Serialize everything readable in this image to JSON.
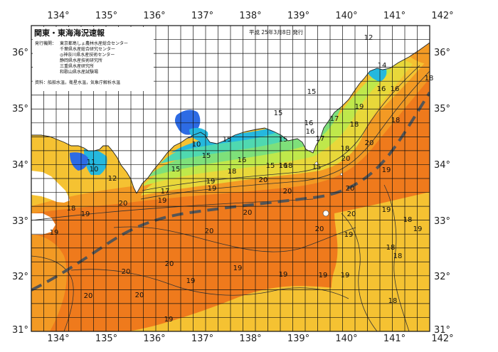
{
  "header": {
    "title": "関東・東海海況速報",
    "date": "平成 25年3月8日 発行"
  },
  "issuers": {
    "label": "発行機関：",
    "names": [
      "東京都島しょ農林水産総合センター",
      "千葉県水産総合研究センター",
      "◎神奈川県水産技術センター",
      "静岡県水産技術研究所",
      "三重県水産研究所",
      "和歌山県水産試験場"
    ]
  },
  "sources": "資料：船舶水温，衛星水温，気象庁解析水温",
  "axes": {
    "lon_labels": [
      "134°",
      "135°",
      "136°",
      "137°",
      "138°",
      "139°",
      "140°",
      "141°",
      "142°"
    ],
    "lat_labels": [
      "36°",
      "35°",
      "34°",
      "33°",
      "32°",
      "31°"
    ]
  },
  "legend_colors": {
    "t10": "#2d6be4",
    "t12": "#25b8de",
    "t14": "#4fd8b0",
    "t15": "#7ee07a",
    "t16": "#bfe84b",
    "t17": "#e8d83a",
    "t18": "#f5c232",
    "t19": "#f39a24",
    "t20": "#ef7a1c",
    "kuroshio_axis": "#555555"
  },
  "isotherm_labels": [
    {
      "text": "12"
    },
    {
      "text": "14"
    },
    {
      "text": "16"
    },
    {
      "text": "15"
    },
    {
      "text": "16"
    },
    {
      "text": "15"
    },
    {
      "text": "16"
    },
    {
      "text": "17"
    },
    {
      "text": "18"
    },
    {
      "text": "16"
    },
    {
      "text": "17"
    },
    {
      "text": "15"
    },
    {
      "text": "15"
    },
    {
      "text": "19"
    },
    {
      "text": "15"
    },
    {
      "text": "16"
    },
    {
      "text": "20"
    },
    {
      "text": "18"
    },
    {
      "text": "20"
    },
    {
      "text": "10"
    },
    {
      "text": "15"
    },
    {
      "text": "11"
    },
    {
      "text": "10"
    },
    {
      "text": "12"
    },
    {
      "text": "15"
    },
    {
      "text": "16"
    },
    {
      "text": "18"
    },
    {
      "text": "15"
    },
    {
      "text": "19"
    },
    {
      "text": "20"
    },
    {
      "text": "18"
    },
    {
      "text": "20"
    },
    {
      "text": "17"
    },
    {
      "text": "19"
    },
    {
      "text": "19"
    },
    {
      "text": "20"
    },
    {
      "text": "20"
    },
    {
      "text": "18"
    },
    {
      "text": "19"
    },
    {
      "text": "20"
    },
    {
      "text": "20"
    },
    {
      "text": "20"
    },
    {
      "text": "19"
    },
    {
      "text": "19"
    },
    {
      "text": "20"
    },
    {
      "text": "19"
    },
    {
      "text": "20"
    },
    {
      "text": "18"
    },
    {
      "text": "18"
    },
    {
      "text": "19"
    },
    {
      "text": "19"
    },
    {
      "text": "19"
    },
    {
      "text": "20"
    },
    {
      "text": "20"
    },
    {
      "text": "20"
    },
    {
      "text": "19"
    },
    {
      "text": "19"
    },
    {
      "text": "19"
    },
    {
      "text": "19"
    },
    {
      "text": "18"
    },
    {
      "text": "18"
    },
    {
      "text": "19"
    },
    {
      "text": "18"
    },
    {
      "text": "18"
    }
  ]
}
